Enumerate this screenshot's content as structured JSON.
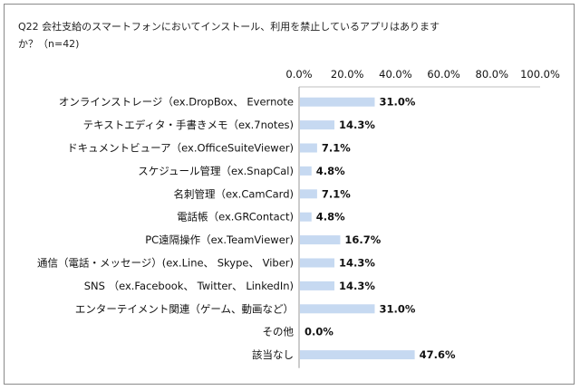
{
  "chart_data": {
    "type": "bar",
    "orientation": "horizontal",
    "title_line1": "Q22 会社支給のスマートフォンにおいてインストール、利用を禁止しているアプリはありますか？",
    "title_line2": "か？（n=42)",
    "title_wrapped": [
      "Q22 会社支給のスマートフォンにおいてインストール、利用を禁止しているアプリはあります",
      "か？（n=42)"
    ],
    "categories": [
      "オンラインストレージ（ex.DropBox、 Evernote",
      "テキストエディタ・手書きメモ（ex.7notes)",
      "ドキュメントビューア（ex.OfficeSuiteViewer)",
      "スケジュール管理（ex.SnapCal)",
      "名刺管理（ex.CamCard)",
      "電話帳（ex.GRContact)",
      "PC遠隔操作（ex.TeamViewer)",
      "通信（電話・メッセージ）(ex.Line、 Skype、 Viber)",
      "SNS （ex.Facebook、 Twitter、 LinkedIn)",
      "エンターテイメント関連（ゲーム、動画など）",
      "その他",
      "該当なし"
    ],
    "values": [
      31.0,
      14.3,
      7.1,
      4.8,
      7.1,
      4.8,
      16.7,
      14.3,
      14.3,
      31.0,
      0.0,
      47.6
    ],
    "value_labels": [
      "31.0%",
      "14.3%",
      "7.1%",
      "4.8%",
      "7.1%",
      "4.8%",
      "16.7%",
      "14.3%",
      "14.3%",
      "31.0%",
      "0.0%",
      "47.6%"
    ],
    "xlim": [
      0,
      100
    ],
    "ticks": [
      "0.0%",
      "20.0%",
      "40.0%",
      "60.0%",
      "80.0%",
      "100.0%"
    ],
    "tick_values": [
      0,
      20,
      40,
      60,
      80,
      100
    ],
    "bar_color": "#c6d9f1",
    "axis_position": "top",
    "grid": false
  }
}
